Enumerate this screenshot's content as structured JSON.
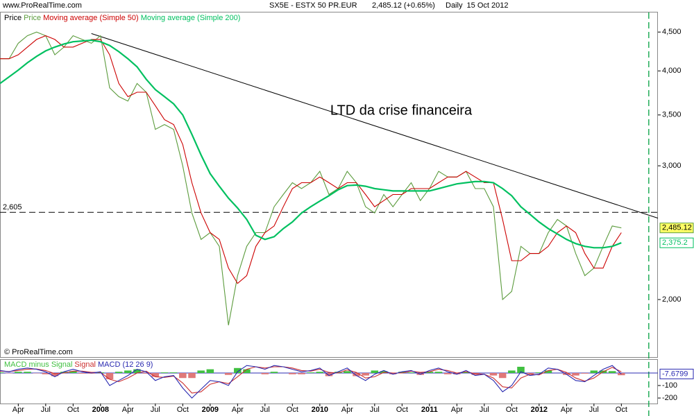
{
  "header": {
    "site": "www.ProRealTime.com",
    "instrument": "SX5E - ESTX 50 PR.EUR",
    "quote": "2,485.12 (+0.65%)",
    "period": "Daily  15 Oct 2012"
  },
  "footer": "© ProRealTime.com",
  "chart_data": [
    {
      "type": "line",
      "log_scale": true,
      "legend_title": "Price",
      "x": [
        "2007-02",
        "2007-03",
        "2007-04",
        "2007-05",
        "2007-06",
        "2007-07",
        "2007-08",
        "2007-09",
        "2007-10",
        "2007-11",
        "2007-12",
        "2008-01",
        "2008-02",
        "2008-03",
        "2008-04",
        "2008-05",
        "2008-06",
        "2008-07",
        "2008-08",
        "2008-09",
        "2008-10",
        "2008-11",
        "2008-12",
        "2009-01",
        "2009-02",
        "2009-03",
        "2009-04",
        "2009-05",
        "2009-06",
        "2009-07",
        "2009-08",
        "2009-09",
        "2009-10",
        "2009-11",
        "2009-12",
        "2010-01",
        "2010-02",
        "2010-03",
        "2010-04",
        "2010-05",
        "2010-06",
        "2010-07",
        "2010-08",
        "2010-09",
        "2010-10",
        "2010-11",
        "2010-12",
        "2011-01",
        "2011-02",
        "2011-03",
        "2011-04",
        "2011-05",
        "2011-06",
        "2011-07",
        "2011-08",
        "2011-09",
        "2011-10",
        "2011-11",
        "2011-12",
        "2012-01",
        "2012-02",
        "2012-03",
        "2012-04",
        "2012-05",
        "2012-06",
        "2012-07",
        "2012-08",
        "2012-09",
        "2012-10"
      ],
      "xlim": [
        "2007-02",
        "2013-02"
      ],
      "ylim": [
        1680,
        4775
      ],
      "yticks": [
        {
          "value": 4500,
          "label": "4,500"
        },
        {
          "value": 4000,
          "label": "4,000"
        },
        {
          "value": 3500,
          "label": "3,500"
        },
        {
          "value": 3000,
          "label": "3,000"
        },
        {
          "value": 2000,
          "label": "2,000"
        }
      ],
      "series": [
        {
          "name": "Price",
          "color": "#5b9b3c",
          "values": [
            4150,
            4150,
            4350,
            4450,
            4500,
            4450,
            4200,
            4300,
            4450,
            4400,
            4350,
            4450,
            3800,
            3700,
            3650,
            3850,
            3750,
            3350,
            3400,
            3350,
            3000,
            2600,
            2400,
            2450,
            2350,
            1850,
            2150,
            2350,
            2450,
            2450,
            2650,
            2750,
            2850,
            2800,
            2850,
            2950,
            2750,
            2800,
            2950,
            2850,
            2650,
            2600,
            2750,
            2650,
            2750,
            2850,
            2700,
            2800,
            2950,
            2900,
            2900,
            2950,
            2800,
            2800,
            2650,
            2000,
            2050,
            2350,
            2300,
            2300,
            2450,
            2550,
            2500,
            2300,
            2150,
            2200,
            2350,
            2500,
            2485.12
          ],
          "value_labels": [
            null,
            null,
            null,
            null,
            null,
            null,
            null,
            null,
            null,
            null,
            null,
            null,
            null,
            null,
            null,
            null,
            null,
            null,
            null,
            null,
            null,
            null,
            null,
            null,
            null,
            null,
            null,
            null,
            null,
            null,
            null,
            null,
            null,
            null,
            null,
            null,
            null,
            null,
            null,
            null,
            null,
            null,
            null,
            null,
            null,
            null,
            null,
            null,
            null,
            null,
            null,
            null,
            null,
            null,
            null,
            null,
            null,
            null,
            null,
            null,
            null,
            null,
            null,
            null,
            null,
            null,
            null,
            null,
            "2,485.12"
          ]
        },
        {
          "name": "Moving average (Simple 50)",
          "color": "#cc0000",
          "values": [
            4150,
            4150,
            4200,
            4300,
            4400,
            4450,
            4400,
            4300,
            4300,
            4350,
            4400,
            4400,
            4200,
            3850,
            3700,
            3750,
            3750,
            3600,
            3450,
            3400,
            3200,
            2850,
            2600,
            2450,
            2400,
            2200,
            2100,
            2150,
            2350,
            2450,
            2500,
            2650,
            2800,
            2850,
            2850,
            2900,
            2850,
            2800,
            2850,
            2850,
            2750,
            2650,
            2700,
            2750,
            2750,
            2800,
            2800,
            2800,
            2850,
            2900,
            2900,
            2950,
            2900,
            2850,
            2850,
            2550,
            2250,
            2250,
            2300,
            2300,
            2350,
            2450,
            2500,
            2450,
            2300,
            2200,
            2200,
            2350,
            2450
          ]
        },
        {
          "name": "Moving average (Simple 200)",
          "color": "#00c060",
          "values": [
            3850,
            3930,
            4010,
            4100,
            4180,
            4250,
            4300,
            4340,
            4370,
            4380,
            4390,
            4370,
            4320,
            4240,
            4150,
            4050,
            3900,
            3780,
            3700,
            3620,
            3500,
            3300,
            3100,
            2930,
            2820,
            2720,
            2640,
            2550,
            2430,
            2400,
            2420,
            2480,
            2530,
            2600,
            2650,
            2695,
            2740,
            2790,
            2825,
            2830,
            2820,
            2800,
            2790,
            2780,
            2780,
            2780,
            2780,
            2780,
            2800,
            2820,
            2840,
            2850,
            2860,
            2860,
            2850,
            2800,
            2740,
            2650,
            2590,
            2530,
            2480,
            2440,
            2400,
            2370,
            2350,
            2340,
            2340,
            2350,
            2375.2
          ],
          "value_labels": [
            null,
            null,
            null,
            null,
            null,
            null,
            null,
            null,
            null,
            null,
            null,
            null,
            null,
            null,
            null,
            null,
            null,
            null,
            null,
            null,
            null,
            null,
            null,
            null,
            null,
            null,
            null,
            null,
            null,
            null,
            null,
            null,
            null,
            null,
            null,
            null,
            null,
            null,
            null,
            null,
            null,
            null,
            null,
            null,
            null,
            null,
            null,
            null,
            null,
            null,
            null,
            null,
            null,
            null,
            null,
            null,
            null,
            null,
            null,
            null,
            null,
            null,
            null,
            null,
            null,
            null,
            null,
            null,
            "2,375.2"
          ]
        }
      ],
      "hlines": [
        {
          "value": 2605,
          "label": "2,605"
        }
      ],
      "trendlines": [
        {
          "x": [
            "2007-12",
            "2013-02"
          ],
          "values": [
            4480,
            2560
          ],
          "color": "#000000"
        }
      ],
      "annotations": [
        {
          "text": "LTD da crise financeira"
        }
      ],
      "vlines": [
        {
          "x": "2013-01",
          "color": "#00a040"
        }
      ]
    },
    {
      "type": "line",
      "x": [
        "2007-02",
        "2007-03",
        "2007-04",
        "2007-05",
        "2007-06",
        "2007-07",
        "2007-08",
        "2007-09",
        "2007-10",
        "2007-11",
        "2007-12",
        "2008-01",
        "2008-02",
        "2008-03",
        "2008-04",
        "2008-05",
        "2008-06",
        "2008-07",
        "2008-08",
        "2008-09",
        "2008-10",
        "2008-11",
        "2008-12",
        "2009-01",
        "2009-02",
        "2009-03",
        "2009-04",
        "2009-05",
        "2009-06",
        "2009-07",
        "2009-08",
        "2009-09",
        "2009-10",
        "2009-11",
        "2009-12",
        "2010-01",
        "2010-02",
        "2010-03",
        "2010-04",
        "2010-05",
        "2010-06",
        "2010-07",
        "2010-08",
        "2010-09",
        "2010-10",
        "2010-11",
        "2010-12",
        "2011-01",
        "2011-02",
        "2011-03",
        "2011-04",
        "2011-05",
        "2011-06",
        "2011-07",
        "2011-08",
        "2011-09",
        "2011-10",
        "2011-11",
        "2011-12",
        "2012-01",
        "2012-02",
        "2012-03",
        "2012-04",
        "2012-05",
        "2012-06",
        "2012-07",
        "2012-08",
        "2012-09",
        "2012-10"
      ],
      "xlim": [
        "2007-02",
        "2013-02"
      ],
      "xticks": [
        {
          "value": "2007-04",
          "label": "Apr"
        },
        {
          "value": "2007-07",
          "label": "Jul"
        },
        {
          "value": "2007-10",
          "label": "Oct"
        },
        {
          "value": "2008-01",
          "label": "2008"
        },
        {
          "value": "2008-04",
          "label": "Apr"
        },
        {
          "value": "2008-07",
          "label": "Jul"
        },
        {
          "value": "2008-10",
          "label": "Oct"
        },
        {
          "value": "2009-01",
          "label": "2009"
        },
        {
          "value": "2009-04",
          "label": "Apr"
        },
        {
          "value": "2009-07",
          "label": "Jul"
        },
        {
          "value": "2009-10",
          "label": "Oct"
        },
        {
          "value": "2010-01",
          "label": "2010"
        },
        {
          "value": "2010-04",
          "label": "Apr"
        },
        {
          "value": "2010-07",
          "label": "Jul"
        },
        {
          "value": "2010-10",
          "label": "Oct"
        },
        {
          "value": "2011-01",
          "label": "2011"
        },
        {
          "value": "2011-04",
          "label": "Apr"
        },
        {
          "value": "2011-07",
          "label": "Jul"
        },
        {
          "value": "2011-10",
          "label": "Oct"
        },
        {
          "value": "2012-01",
          "label": "2012"
        },
        {
          "value": "2012-04",
          "label": "Apr"
        },
        {
          "value": "2012-07",
          "label": "Jul"
        },
        {
          "value": "2012-10",
          "label": "Oct"
        }
      ],
      "ylim": [
        -244,
        111
      ],
      "yticks": [
        -100,
        -200
      ],
      "series": [
        {
          "name": "MACD minus Signal",
          "type": "bar",
          "color": "#40c040",
          "color_negative": "#e07878",
          "values": [
            5,
            -2,
            10,
            10,
            -2,
            -10,
            -25,
            10,
            15,
            -5,
            -5,
            5,
            -50,
            10,
            20,
            30,
            -5,
            -30,
            5,
            5,
            -40,
            -40,
            20,
            30,
            0,
            -15,
            40,
            30,
            0,
            -10,
            10,
            0,
            -10,
            -10,
            5,
            10,
            -25,
            10,
            15,
            -25,
            -20,
            20,
            15,
            -10,
            10,
            5,
            -15,
            10,
            10,
            -10,
            -10,
            10,
            -15,
            0,
            -20,
            -40,
            20,
            50,
            -10,
            5,
            20,
            0,
            -15,
            -20,
            -5,
            20,
            20,
            15,
            -17.68
          ]
        },
        {
          "name": "Signal",
          "type": "line",
          "color": "#cc3030",
          "values": [
            15,
            12,
            20,
            30,
            32,
            20,
            -5,
            0,
            15,
            15,
            5,
            5,
            -50,
            -70,
            -40,
            0,
            15,
            -30,
            -35,
            -25,
            -80,
            -160,
            -150,
            -90,
            -70,
            -85,
            -30,
            30,
            50,
            40,
            50,
            50,
            40,
            20,
            15,
            30,
            5,
            0,
            25,
            5,
            -40,
            -30,
            5,
            0,
            0,
            15,
            5,
            10,
            30,
            20,
            0,
            10,
            -5,
            -10,
            -40,
            -110,
            -120,
            -40,
            -10,
            -15,
            20,
            30,
            5,
            -40,
            -65,
            -40,
            10,
            45,
            10
          ]
        },
        {
          "name": "MACD (12 26 9)",
          "type": "line",
          "color": "#2828b0",
          "last_value_box": true,
          "values": [
            20,
            10,
            30,
            40,
            30,
            10,
            -30,
            10,
            30,
            10,
            0,
            10,
            -100,
            -60,
            -20,
            30,
            10,
            -60,
            -30,
            -20,
            -120,
            -200,
            -130,
            -60,
            -70,
            -100,
            10,
            60,
            50,
            30,
            60,
            50,
            30,
            10,
            20,
            40,
            -20,
            10,
            40,
            -20,
            -60,
            -10,
            20,
            -10,
            10,
            20,
            -10,
            20,
            40,
            10,
            -10,
            20,
            -20,
            -10,
            -60,
            -150,
            -100,
            10,
            -20,
            -10,
            40,
            30,
            -10,
            -60,
            -70,
            -20,
            30,
            60,
            -7.6799
          ]
        }
      ]
    }
  ]
}
